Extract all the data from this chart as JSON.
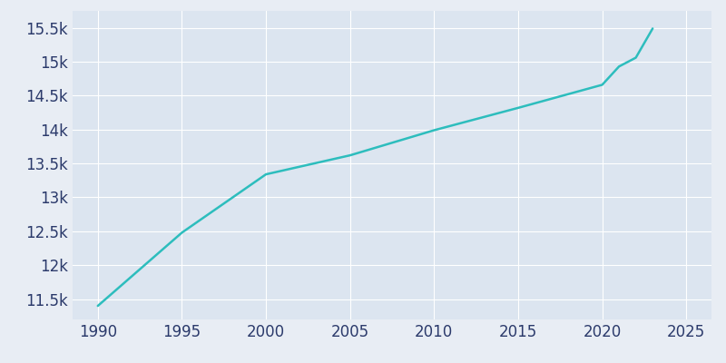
{
  "years": [
    1990,
    1995,
    2000,
    2005,
    2010,
    2015,
    2020,
    2021,
    2022,
    2023
  ],
  "population": [
    11400,
    12480,
    13340,
    13620,
    13990,
    14320,
    14660,
    14930,
    15060,
    15490
  ],
  "line_color": "#2dbdbd",
  "bg_color": "#e8edf4",
  "plot_bg_color": "#dce5f0",
  "tick_color": "#2b3a6b",
  "grid_color": "#ffffff",
  "xlim": [
    1988.5,
    2026.5
  ],
  "ylim": [
    11200,
    15750
  ],
  "xticks": [
    1990,
    1995,
    2000,
    2005,
    2010,
    2015,
    2020,
    2025
  ],
  "ytick_values": [
    11500,
    12000,
    12500,
    13000,
    13500,
    14000,
    14500,
    15000,
    15500
  ],
  "ytick_labels": [
    "11.5k",
    "12k",
    "12.5k",
    "13k",
    "13.5k",
    "14k",
    "14.5k",
    "15k",
    "15.5k"
  ],
  "tick_fontsize": 12,
  "linewidth": 1.8
}
